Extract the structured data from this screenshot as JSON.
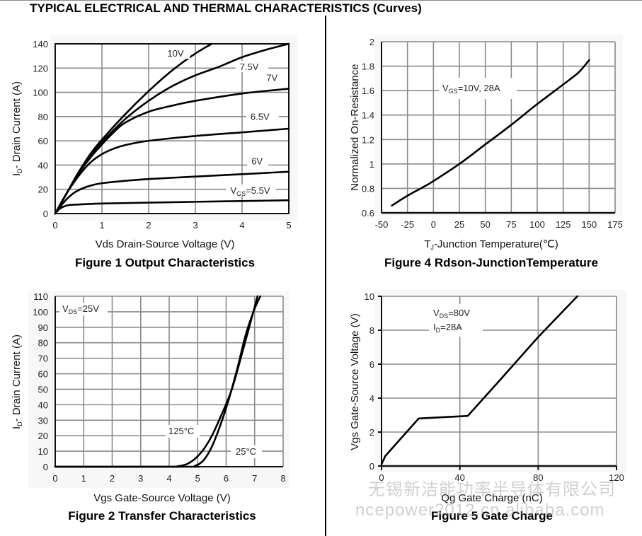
{
  "page": {
    "title": "TYPICAL ELECTRICAL AND THERMAL CHARACTERISTICS (Curves)",
    "watermark_line1": "无锡新洁能功率半导体有限公司",
    "watermark_line2": "ncepower2012.cn.alibaba.com"
  },
  "colors": {
    "grid": "#8a8a8a",
    "curve": "#000000",
    "plot_bg": "#ffffff",
    "panel_bg": "#f7f7f7"
  },
  "chart_data": [
    {
      "id": "fig1",
      "type": "line",
      "caption": "Figure 1 Output Characteristics",
      "xlabel": "Vds Drain-Source Voltage (V)",
      "ylabel": "ID- Drain Current (A)",
      "ylabel_main": "I",
      "ylabel_sub": "D",
      "ylabel_rest": "- Drain Current (A)",
      "xlim": [
        0,
        5
      ],
      "ylim": [
        0,
        140
      ],
      "xticks": [
        0,
        1,
        2,
        3,
        4,
        5
      ],
      "yticks": [
        0,
        20,
        40,
        60,
        80,
        100,
        120,
        140
      ],
      "grid": true,
      "series": [
        {
          "name": "VGS=5.5V",
          "label_main": "V",
          "label_sub": "GS",
          "label_rest": "=5.5V",
          "label_at": [
            3.75,
            17
          ],
          "x": [
            0,
            0.1,
            0.2,
            0.3,
            0.5,
            0.8,
            1,
            2,
            3,
            4,
            5
          ],
          "y": [
            0,
            4,
            6,
            7,
            7.5,
            8,
            8.3,
            9,
            9.7,
            10.3,
            11
          ]
        },
        {
          "name": "6V",
          "label_main": "6V",
          "label_sub": "",
          "label_rest": "",
          "label_at": [
            4.2,
            41
          ],
          "x": [
            0,
            0.2,
            0.4,
            0.6,
            0.8,
            1,
            1.5,
            2,
            3,
            4,
            5
          ],
          "y": [
            0,
            10,
            17,
            21,
            23.5,
            25,
            27,
            28.5,
            30.5,
            32.5,
            34.5
          ]
        },
        {
          "name": "6.5V",
          "label_main": "6.5V",
          "label_sub": "",
          "label_rest": "",
          "label_at": [
            4.18,
            78
          ],
          "x": [
            0,
            0.25,
            0.5,
            0.75,
            1,
            1.25,
            1.5,
            2,
            3,
            4,
            5
          ],
          "y": [
            0,
            17,
            31,
            42,
            49,
            53.5,
            56.5,
            60,
            64,
            67,
            70
          ]
        },
        {
          "name": "7V",
          "label_main": "7V",
          "label_sub": "",
          "label_rest": "",
          "label_at": [
            4.52,
            110
          ],
          "x": [
            0,
            0.25,
            0.5,
            0.75,
            1,
            1.25,
            1.5,
            2,
            2.5,
            3,
            4,
            5
          ],
          "y": [
            0,
            17,
            33,
            46,
            57,
            67,
            75,
            84,
            89,
            93,
            99,
            103
          ]
        },
        {
          "name": "7.5V",
          "label_main": "7.5V",
          "label_sub": "",
          "label_rest": "",
          "label_at": [
            3.95,
            119
          ],
          "x": [
            0,
            0.25,
            0.5,
            0.75,
            1,
            1.5,
            2,
            2.5,
            3,
            3.5,
            4,
            4.5,
            5
          ],
          "y": [
            0,
            17,
            34,
            48,
            59,
            78,
            93,
            105,
            114,
            121,
            129,
            135,
            140
          ]
        },
        {
          "name": "10V",
          "label_main": "10V",
          "label_sub": "",
          "label_rest": "",
          "label_at": [
            2.4,
            130
          ],
          "x": [
            0,
            0.25,
            0.5,
            0.75,
            1,
            1.5,
            2,
            2.5,
            3,
            3.35
          ],
          "y": [
            0,
            17,
            34,
            49,
            61,
            82,
            101,
            118,
            132,
            140
          ]
        }
      ]
    },
    {
      "id": "fig2",
      "type": "line",
      "caption": "Figure 2 Transfer Characteristics",
      "xlabel": "Vgs Gate-Source Voltage (V)",
      "ylabel": "ID- Drain Current (A)",
      "ylabel_main": "I",
      "ylabel_sub": "D",
      "ylabel_rest": "- Drain Current (A)",
      "xlim": [
        0,
        8
      ],
      "ylim": [
        0,
        110
      ],
      "xticks": [
        0,
        1,
        2,
        3,
        4,
        5,
        6,
        7,
        8
      ],
      "yticks": [
        0,
        10,
        20,
        30,
        40,
        50,
        60,
        70,
        80,
        90,
        100,
        110
      ],
      "grid": true,
      "annotation": {
        "main": "V",
        "sub": "DS",
        "rest": "=25V"
      },
      "series": [
        {
          "name": "125°C",
          "label_main": "125°C",
          "label_sub": "",
          "label_rest": "",
          "x": [
            0,
            4.0,
            4.3,
            4.6,
            4.9,
            5.2,
            5.5,
            5.8,
            6.2,
            6.6,
            7.0,
            7.1
          ],
          "y": [
            0,
            0,
            0.3,
            1.5,
            5,
            11,
            20,
            32,
            50,
            76,
            103,
            110
          ]
        },
        {
          "name": "25°C",
          "label_main": "25°C",
          "label_sub": "",
          "label_rest": "",
          "x": [
            0,
            4.6,
            4.9,
            5.2,
            5.5,
            5.8,
            6.1,
            6.4,
            6.7,
            7.0,
            7.2
          ],
          "y": [
            0,
            0,
            0.5,
            4,
            13,
            27,
            44,
            64,
            86,
            102,
            110
          ]
        }
      ]
    },
    {
      "id": "fig4",
      "type": "line",
      "caption": "Figure 4 Rdson-JunctionTemperature",
      "xlabel": "TJ-Junction Temperature(℃)",
      "xlabel_main": "T",
      "xlabel_sub": "J",
      "xlabel_rest": "-Junction Temperature(℃)",
      "ylabel": "Normalized On-Resistance",
      "xlim": [
        -50,
        175
      ],
      "ylim": [
        0.6,
        2
      ],
      "xticks": [
        -50,
        -25,
        0,
        25,
        50,
        75,
        100,
        125,
        150,
        175
      ],
      "yticks": [
        0.6,
        0.8,
        1,
        1.2,
        1.4,
        1.6,
        1.8,
        2
      ],
      "ytick_labels": [
        "0.6",
        "0.8",
        "1",
        "1.2",
        "1.4",
        "1.6",
        "1.8",
        "2"
      ],
      "grid": true,
      "annotation": {
        "main": "V",
        "sub": "GS",
        "rest": "=10V, 28A"
      },
      "series": [
        {
          "name": "VGS=10V, 28A",
          "x": [
            -40,
            -25,
            -10,
            0,
            25,
            50,
            75,
            100,
            125,
            140,
            150
          ],
          "y": [
            0.66,
            0.74,
            0.81,
            0.86,
            1.0,
            1.16,
            1.32,
            1.49,
            1.65,
            1.75,
            1.85
          ]
        }
      ]
    },
    {
      "id": "fig5",
      "type": "line",
      "caption": "Figure 5 Gate Charge",
      "xlabel": "Qg Gate Charge (nC)",
      "ylabel": "Vgs Gate-Source Voltage (V)",
      "xlim": [
        0,
        120
      ],
      "ylim": [
        0,
        10
      ],
      "xticks": [
        0,
        40,
        80,
        120
      ],
      "yticks": [
        0,
        2,
        4,
        6,
        8,
        10
      ],
      "grid": true,
      "annotation_line1": {
        "main": "V",
        "sub": "DS",
        "rest": "=80V"
      },
      "annotation_line2": {
        "main": "I",
        "sub": "D",
        "rest": "=28A"
      },
      "series": [
        {
          "name": "VDS=80V, ID=28A",
          "x": [
            0,
            2,
            19,
            44,
            60,
            80,
            100
          ],
          "y": [
            0.1,
            0.6,
            2.8,
            2.95,
            5.0,
            7.6,
            10.0
          ]
        }
      ]
    }
  ]
}
